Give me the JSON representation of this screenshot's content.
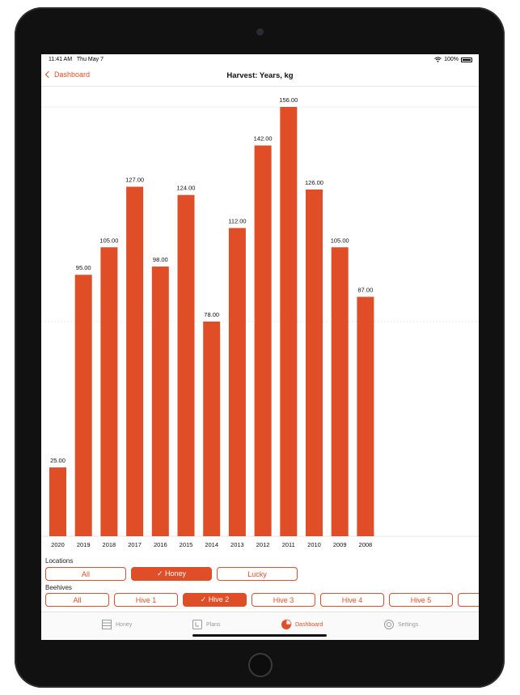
{
  "status_bar": {
    "time": "11:41 AM",
    "date": "Thu May 7",
    "battery": "100%"
  },
  "nav": {
    "back_label": "Dashboard",
    "title": "Harvest: Years, kg"
  },
  "colors": {
    "accent": "#e04e28",
    "bar": "#e04e28"
  },
  "chart_data": {
    "type": "bar",
    "categories": [
      "2020",
      "2019",
      "2018",
      "2017",
      "2016",
      "2015",
      "2014",
      "2013",
      "2012",
      "2011",
      "2010",
      "2009",
      "2008"
    ],
    "values": [
      25,
      95,
      105,
      127,
      98,
      124,
      78,
      112,
      142,
      156,
      126,
      105,
      87
    ],
    "value_labels": [
      "25.00",
      "95.00",
      "105.00",
      "127.00",
      "98.00",
      "124.00",
      "78.00",
      "112.00",
      "142.00",
      "156.00",
      "126.00",
      "105.00",
      "87.00"
    ],
    "ylim": [
      0,
      156
    ],
    "grid": true,
    "title": "",
    "xlabel": "",
    "ylabel": ""
  },
  "filters": {
    "locations_label": "Locations",
    "locations": [
      {
        "label": "All",
        "selected": false
      },
      {
        "label": "✓ Honey",
        "selected": true
      },
      {
        "label": "Lucky",
        "selected": false
      }
    ],
    "beehives_label": "Beehives",
    "beehives": [
      {
        "label": "All",
        "selected": false
      },
      {
        "label": "Hive 1",
        "selected": false
      },
      {
        "label": "✓ Hive 2",
        "selected": true
      },
      {
        "label": "Hive 3",
        "selected": false
      },
      {
        "label": "Hive 4",
        "selected": false
      },
      {
        "label": "Hive 5",
        "selected": false
      },
      {
        "label": "",
        "selected": false
      }
    ]
  },
  "tabs": [
    {
      "label": "Honey",
      "icon": "hive-icon",
      "active": false
    },
    {
      "label": "Plans",
      "icon": "calendar-icon",
      "active": false
    },
    {
      "label": "Dashboard",
      "icon": "pie-chart-icon",
      "active": true
    },
    {
      "label": "Settings",
      "icon": "gear-icon",
      "active": false
    }
  ]
}
